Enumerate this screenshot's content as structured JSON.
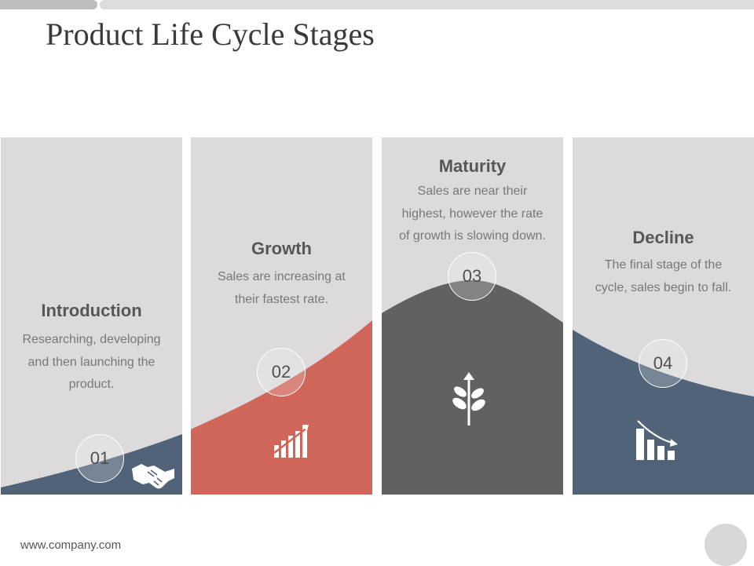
{
  "slide": {
    "title": "Product Life Cycle Stages",
    "footer": "www.company.com"
  },
  "stages": [
    {
      "number": "01",
      "title": "Introduction",
      "description": "Researching, developing and then launching the product.",
      "color": "#506378",
      "icon": "handshake-icon"
    },
    {
      "number": "02",
      "title": "Growth",
      "description": "Sales are increasing at their fastest rate.",
      "color": "#d0655a",
      "icon": "growth-chart-icon"
    },
    {
      "number": "03",
      "title": "Maturity",
      "description": "Sales are near their highest, however the rate of growth is slowing down.",
      "color": "#616161",
      "icon": "plant-arrow-icon"
    },
    {
      "number": "04",
      "title": "Decline",
      "description": "The final stage of the cycle, sales begin to fall.",
      "color": "#506378",
      "icon": "decline-chart-icon"
    }
  ],
  "colors": {
    "panel_bg": "#dcdadb",
    "title_text": "#575757",
    "body_text": "#787878"
  }
}
